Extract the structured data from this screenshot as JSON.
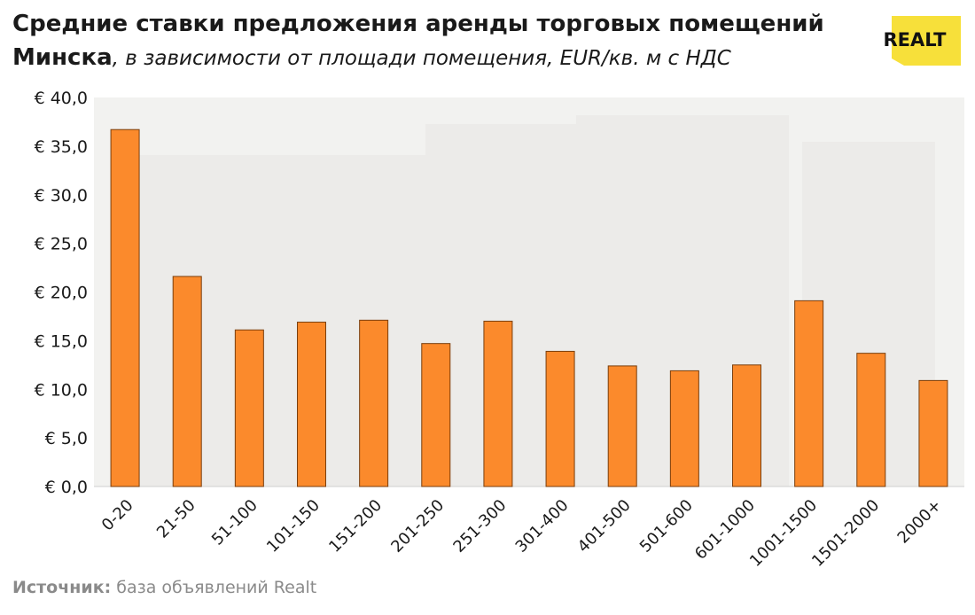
{
  "header": {
    "title_bold_1": "Средние ставки предложения аренды торговых помещений",
    "title_bold_2": "Минска",
    "title_italic": ", в зависимости от площади помещения, EUR/кв. м с НДС"
  },
  "logo": {
    "text": "REALT",
    "bg_color": "#f7e03a"
  },
  "source": {
    "label": "Источник:",
    "text": " база объявлений Realt"
  },
  "chart_data": {
    "type": "bar",
    "title": "Средние ставки предложения аренды торговых помещений Минска, в зависимости от площади помещения, EUR/кв. м с НДС",
    "xlabel": "",
    "ylabel": "",
    "categories": [
      "0-20",
      "21-50",
      "51-100",
      "101-150",
      "151-200",
      "201-250",
      "251-300",
      "301-400",
      "401-500",
      "501-600",
      "601-1000",
      "1001-1500",
      "1501-2000",
      "2000+"
    ],
    "values": [
      36.7,
      21.6,
      16.1,
      16.9,
      17.1,
      14.7,
      17.0,
      13.9,
      12.4,
      11.9,
      12.5,
      19.1,
      13.7,
      10.9
    ],
    "ylim": [
      0,
      40
    ],
    "yticks": [
      0,
      5,
      10,
      15,
      20,
      25,
      30,
      35,
      40
    ],
    "ytick_labels": [
      "€ 0,0",
      "€ 5,0",
      "€ 10,0",
      "€ 15,0",
      "€ 20,0",
      "€ 25,0",
      "€ 30,0",
      "€ 35,0",
      "€ 40,0"
    ],
    "grid": false,
    "bar_color": "#fb8a2c",
    "bar_edge_color": "#7a3e0c"
  }
}
